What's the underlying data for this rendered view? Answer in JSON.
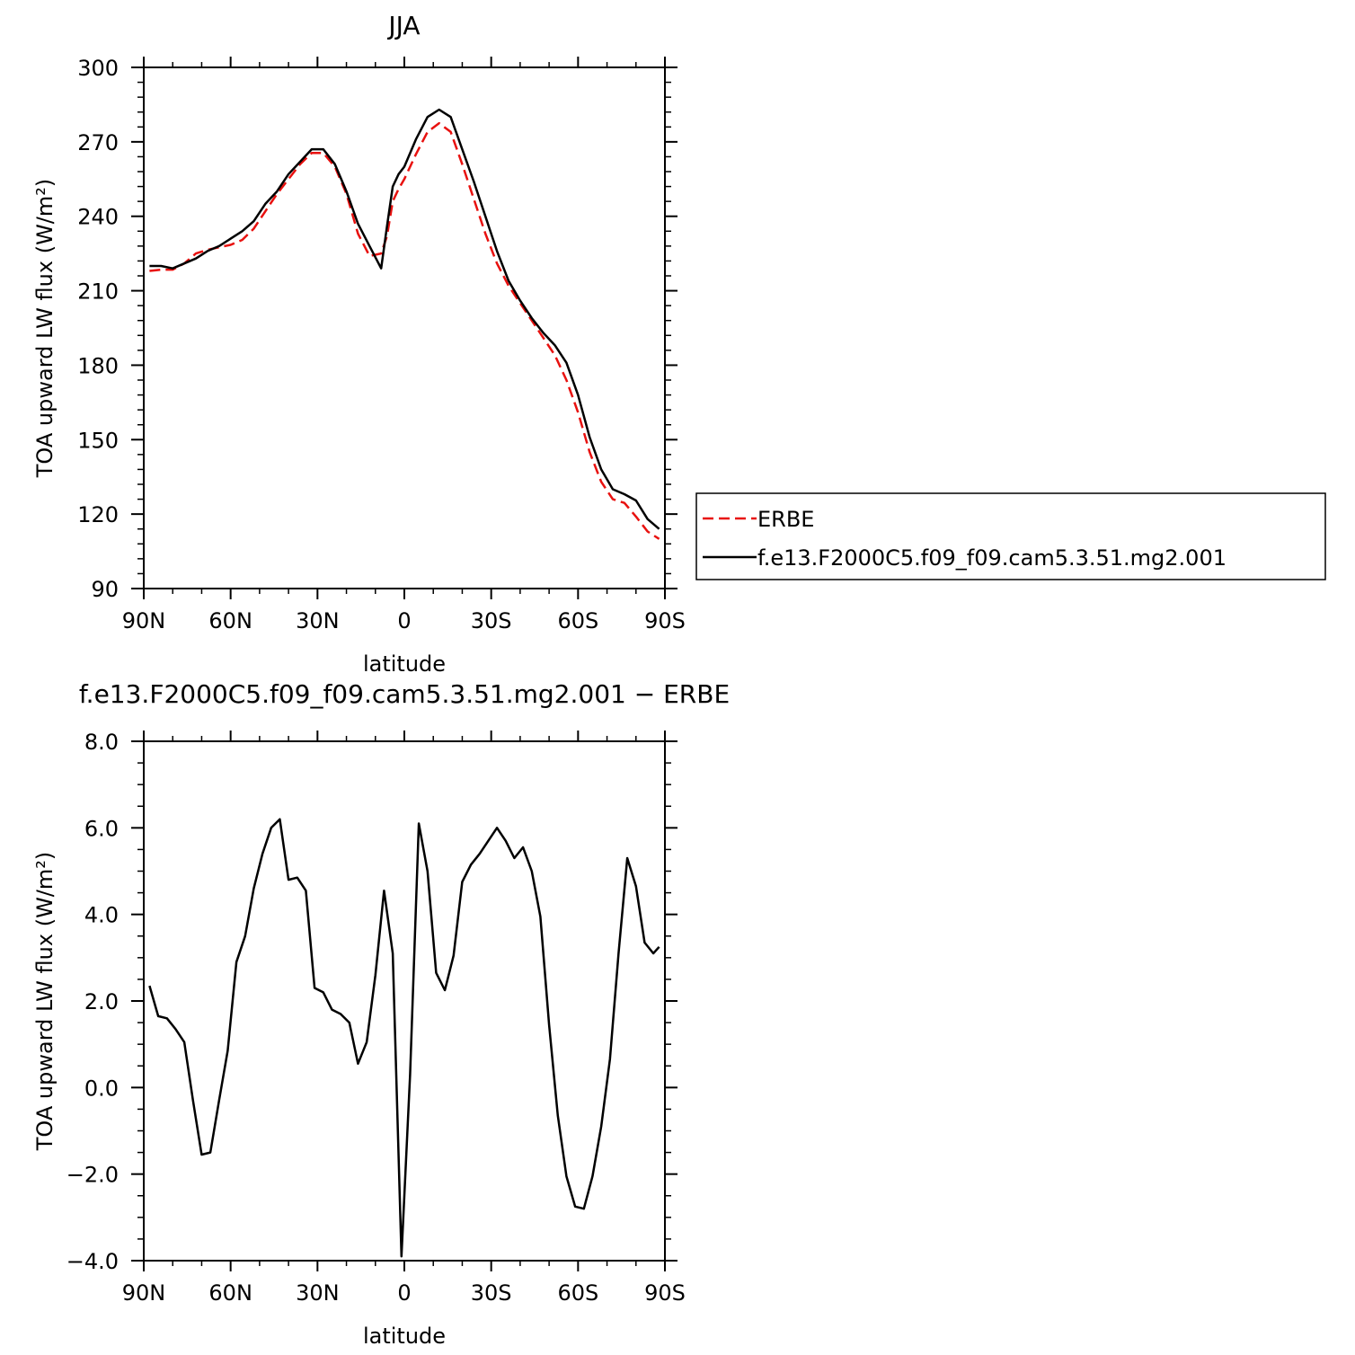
{
  "chart_data": [
    {
      "type": "line",
      "title": "JJA",
      "xlabel": "latitude",
      "ylabel": "TOA upward LW flux (W/m²)",
      "xlim": [
        90,
        -90
      ],
      "ylim": [
        90,
        300
      ],
      "x_ticks": [
        {
          "value": 90,
          "label": "90N"
        },
        {
          "value": 60,
          "label": "60N"
        },
        {
          "value": 30,
          "label": "30N"
        },
        {
          "value": 0,
          "label": "0"
        },
        {
          "value": -30,
          "label": "30S"
        },
        {
          "value": -60,
          "label": "60S"
        },
        {
          "value": -90,
          "label": "90S"
        }
      ],
      "y_ticks": [
        {
          "value": 90,
          "label": "90"
        },
        {
          "value": 120,
          "label": "120"
        },
        {
          "value": 150,
          "label": "150"
        },
        {
          "value": 180,
          "label": "180"
        },
        {
          "value": 210,
          "label": "210"
        },
        {
          "value": 240,
          "label": "240"
        },
        {
          "value": 270,
          "label": "270"
        },
        {
          "value": 300,
          "label": "300"
        }
      ],
      "legend_placement": "right",
      "series": [
        {
          "name": "ERBE",
          "color": "#e8110f",
          "dash": true,
          "x": [
            88,
            84,
            80,
            76,
            72,
            68,
            64,
            60,
            56,
            52,
            48,
            44,
            40,
            36,
            32,
            28,
            24,
            20,
            16,
            12,
            8,
            6,
            4,
            2,
            0,
            -4,
            -8,
            -12,
            -16,
            -20,
            -24,
            -28,
            -32,
            -36,
            -40,
            -44,
            -48,
            -52,
            -56,
            -60,
            -64,
            -68,
            -72,
            -76,
            -80,
            -84,
            -88
          ],
          "values": [
            218,
            218.5,
            218.5,
            221,
            225,
            226.5,
            227.5,
            228.5,
            230.5,
            235,
            242,
            249,
            255,
            261,
            265.5,
            265.5,
            260,
            249,
            233,
            224,
            225,
            232,
            246,
            251,
            255,
            265,
            274,
            277.5,
            274,
            261,
            247,
            233,
            221,
            212,
            205,
            198,
            191,
            184,
            174,
            161,
            145,
            133,
            126,
            124.5,
            119,
            113,
            110
          ]
        },
        {
          "name": "f.e13.F2000C5.f09_f09.cam5.3.51.mg2.001",
          "color": "#000000",
          "dash": false,
          "x": [
            88,
            84,
            80,
            76,
            72,
            68,
            64,
            60,
            56,
            52,
            48,
            44,
            40,
            36,
            32,
            28,
            24,
            20,
            16,
            12,
            8,
            6,
            4,
            2,
            0,
            -4,
            -8,
            -12,
            -16,
            -20,
            -24,
            -28,
            -32,
            -36,
            -40,
            -44,
            -48,
            -52,
            -56,
            -60,
            -64,
            -68,
            -72,
            -76,
            -80,
            -84,
            -88
          ],
          "values": [
            220,
            220,
            219,
            221,
            223,
            226,
            228,
            231,
            234,
            238,
            245,
            250,
            257,
            262,
            267,
            267,
            261,
            250,
            237,
            228,
            219,
            236,
            252,
            257,
            260,
            271,
            280,
            283,
            280,
            267,
            254,
            240,
            226,
            214,
            206,
            199,
            193,
            188,
            181,
            168,
            151,
            138,
            130,
            128,
            125.5,
            118,
            114
          ]
        }
      ]
    },
    {
      "type": "line",
      "title": "f.e13.F2000C5.f09_f09.cam5.3.51.mg2.001 − ERBE",
      "xlabel": "latitude",
      "ylabel": "TOA upward LW flux (W/m²)",
      "xlim": [
        90,
        -90
      ],
      "ylim": [
        -4,
        8
      ],
      "x_ticks": [
        {
          "value": 90,
          "label": "90N"
        },
        {
          "value": 60,
          "label": "60N"
        },
        {
          "value": 30,
          "label": "30N"
        },
        {
          "value": 0,
          "label": "0"
        },
        {
          "value": -30,
          "label": "30S"
        },
        {
          "value": -60,
          "label": "60S"
        },
        {
          "value": -90,
          "label": "90S"
        }
      ],
      "y_ticks": [
        {
          "value": -4,
          "label": "−4.0"
        },
        {
          "value": -2,
          "label": "−2.0"
        },
        {
          "value": 0,
          "label": "0.0"
        },
        {
          "value": 2,
          "label": "2.0"
        },
        {
          "value": 4,
          "label": "4.0"
        },
        {
          "value": 6,
          "label": "6.0"
        },
        {
          "value": 8,
          "label": "8.0"
        }
      ],
      "series": [
        {
          "name": "",
          "color": "#000000",
          "dash": false,
          "x": [
            88,
            85,
            82,
            79,
            76,
            73,
            70,
            67,
            64,
            61,
            58,
            55,
            52,
            49,
            46,
            43,
            40,
            37,
            34,
            31,
            28,
            25,
            22,
            19,
            16,
            13,
            10,
            7,
            4,
            1,
            -2,
            -5,
            -8,
            -11,
            -14,
            -17,
            -20,
            -23,
            -26,
            -29,
            -32,
            -35,
            -38,
            -41,
            -44,
            -47,
            -50,
            -53,
            -56,
            -59,
            -62,
            -65,
            -68,
            -71,
            -74,
            -77,
            -80,
            -83,
            -86,
            -88
          ],
          "values": [
            2.35,
            1.65,
            1.6,
            1.35,
            1.05,
            -0.3,
            -1.55,
            -1.5,
            -0.3,
            0.85,
            2.9,
            3.5,
            4.6,
            5.4,
            6.0,
            6.2,
            4.8,
            4.85,
            4.55,
            2.3,
            2.2,
            1.8,
            1.7,
            1.5,
            0.55,
            1.05,
            2.6,
            4.55,
            3.1,
            -3.9,
            0.3,
            6.1,
            5.0,
            2.65,
            2.25,
            3.05,
            4.75,
            5.15,
            5.4,
            5.7,
            6.0,
            5.7,
            5.3,
            5.55,
            5.0,
            3.95,
            1.45,
            -0.65,
            -2.05,
            -2.75,
            -2.8,
            -2.05,
            -0.9,
            0.65,
            3.1,
            5.3,
            4.65,
            3.35,
            3.1,
            3.25
          ]
        }
      ]
    }
  ]
}
